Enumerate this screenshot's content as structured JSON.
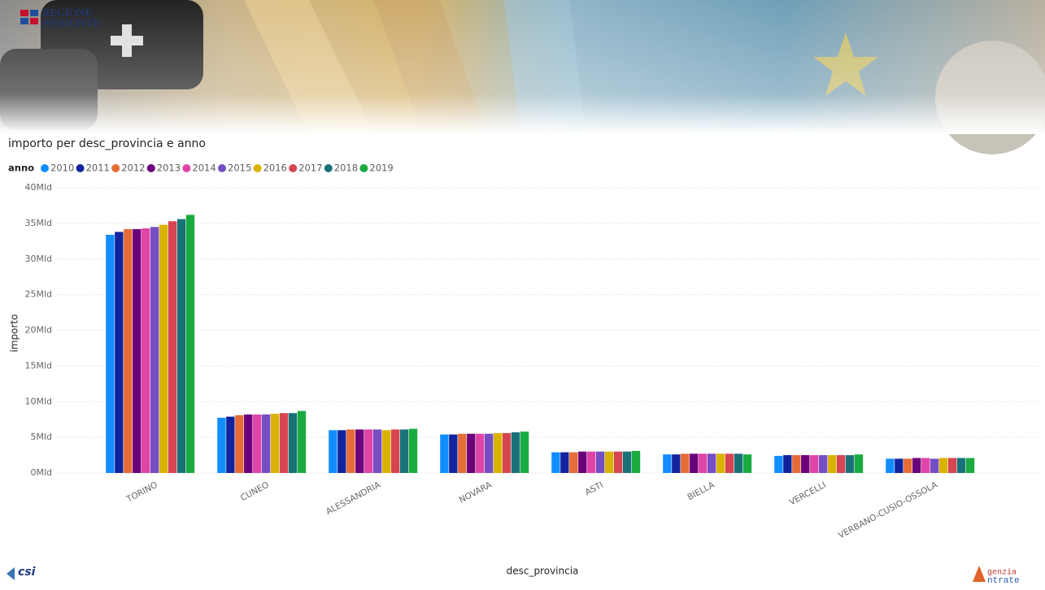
{
  "header": {
    "logo_line1": "REGIONE",
    "logo_line2": "PIEMONTE"
  },
  "footer": {
    "left_logo": "csi",
    "right_logo_line1": "genzia",
    "right_logo_line2": "ntrate"
  },
  "chart_data": {
    "type": "bar",
    "title": "importo per desc_provincia e anno",
    "legend_title": "anno",
    "x_label": "desc_provincia",
    "y_label": "importo",
    "grid": true,
    "categories": [
      "TORINO",
      "CUNEO",
      "ALESSANDRIA",
      "NOVARA",
      "ASTI",
      "BIELLA",
      "VERCELLI",
      "VERBANO-CUSIO-OSSOLA"
    ],
    "ylim": [
      0,
      40
    ],
    "yticks": [
      {
        "value": 0,
        "label": "0Mld"
      },
      {
        "value": 5,
        "label": "5Mld"
      },
      {
        "value": 10,
        "label": "10Mld"
      },
      {
        "value": 15,
        "label": "15Mld"
      },
      {
        "value": 20,
        "label": "20Mld"
      },
      {
        "value": 25,
        "label": "25Mld"
      },
      {
        "value": 30,
        "label": "30Mld"
      },
      {
        "value": 35,
        "label": "35Mld"
      },
      {
        "value": 40,
        "label": "40Mld"
      }
    ],
    "series": [
      {
        "name": "2010",
        "color": "#118DFF",
        "values": [
          33.4,
          7.75,
          6.0,
          5.4,
          2.9,
          2.6,
          2.4,
          2.0
        ]
      },
      {
        "name": "2011",
        "color": "#12239E",
        "values": [
          33.8,
          7.9,
          6.0,
          5.4,
          2.9,
          2.6,
          2.5,
          2.0
        ]
      },
      {
        "name": "2012",
        "color": "#E66C37",
        "values": [
          34.2,
          8.1,
          6.1,
          5.5,
          2.9,
          2.7,
          2.5,
          2.0
        ]
      },
      {
        "name": "2013",
        "color": "#6B007B",
        "values": [
          34.2,
          8.2,
          6.1,
          5.5,
          3.0,
          2.7,
          2.5,
          2.1
        ]
      },
      {
        "name": "2014",
        "color": "#E044A7",
        "values": [
          34.3,
          8.2,
          6.1,
          5.5,
          3.0,
          2.7,
          2.5,
          2.1
        ]
      },
      {
        "name": "2015",
        "color": "#744EC2",
        "values": [
          34.5,
          8.2,
          6.1,
          5.5,
          3.0,
          2.7,
          2.5,
          2.0
        ]
      },
      {
        "name": "2016",
        "color": "#D9B300",
        "values": [
          34.8,
          8.3,
          6.0,
          5.6,
          3.0,
          2.7,
          2.5,
          2.1
        ]
      },
      {
        "name": "2017",
        "color": "#D64550",
        "values": [
          35.3,
          8.4,
          6.1,
          5.6,
          3.0,
          2.7,
          2.5,
          2.1
        ]
      },
      {
        "name": "2018",
        "color": "#197278",
        "values": [
          35.6,
          8.4,
          6.1,
          5.7,
          3.0,
          2.7,
          2.5,
          2.1
        ]
      },
      {
        "name": "2019",
        "color": "#1AAB40",
        "values": [
          36.2,
          8.7,
          6.2,
          5.8,
          3.1,
          2.6,
          2.6,
          2.1
        ]
      }
    ]
  }
}
